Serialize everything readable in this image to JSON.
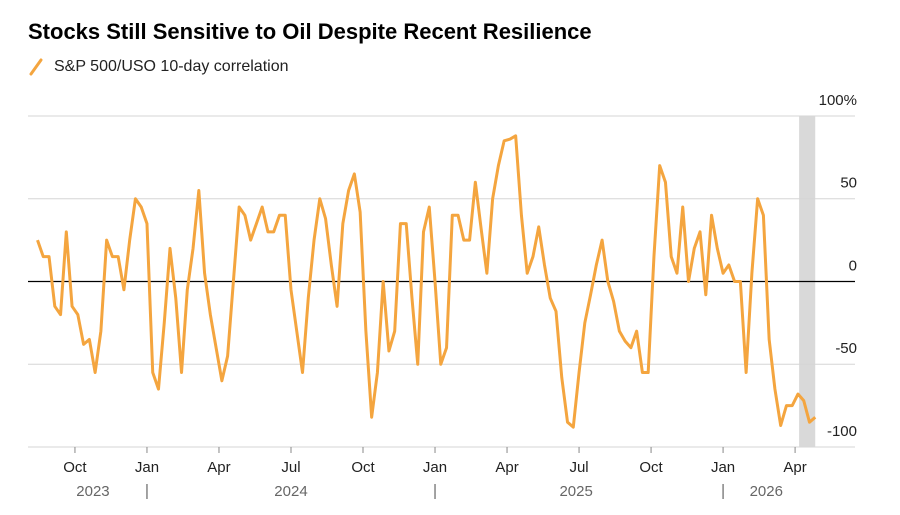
{
  "chart_data": {
    "type": "line",
    "title": "Stocks Still Sensitive to Oil Despite Recent Resilience",
    "series": [
      {
        "name": "S&P 500/USO 10-day correlation",
        "color": "#f4a53f",
        "values": [
          25,
          15,
          15,
          -15,
          -20,
          30,
          -15,
          -20,
          -38,
          -35,
          -55,
          -30,
          25,
          15,
          15,
          -5,
          25,
          50,
          45,
          35,
          -55,
          -65,
          -25,
          20,
          -10,
          -55,
          -5,
          20,
          55,
          5,
          -20,
          -40,
          -60,
          -45,
          0,
          45,
          40,
          25,
          35,
          45,
          30,
          30,
          40,
          40,
          -5,
          -30,
          -55,
          -10,
          25,
          50,
          38,
          10,
          -15,
          35,
          55,
          65,
          42,
          -30,
          -82,
          -55,
          0,
          -42,
          -30,
          35,
          35,
          -10,
          -50,
          30,
          45,
          0,
          -50,
          -40,
          40,
          40,
          25,
          25,
          60,
          32,
          5,
          50,
          70,
          85,
          86,
          88,
          40,
          5,
          15,
          33,
          10,
          -10,
          -18,
          -58,
          -85,
          -88,
          -55,
          -25,
          -8,
          10,
          25,
          0,
          -12,
          -30,
          -36,
          -40,
          -30,
          -55,
          -55,
          15,
          70,
          60,
          15,
          5,
          45,
          0,
          20,
          30,
          -8,
          40,
          20,
          5,
          10,
          0,
          0,
          -55,
          5,
          50,
          40,
          -35,
          -65,
          -87,
          -75,
          -75,
          -68,
          -72,
          -85,
          -82
        ]
      }
    ],
    "x": [
      2023.62,
      2023.64,
      2023.66,
      2023.68,
      2023.7,
      2023.72,
      2023.74,
      2023.76,
      2023.78,
      2023.8,
      2023.82,
      2023.84,
      2023.86,
      2023.88,
      2023.9,
      2023.92,
      2023.94,
      2023.96,
      2023.98,
      2024.0,
      2024.02,
      2024.04,
      2024.06,
      2024.08,
      2024.1,
      2024.12,
      2024.14,
      2024.16,
      2024.18,
      2024.2,
      2024.22,
      2024.24,
      2024.26,
      2024.28,
      2024.3,
      2024.32,
      2024.34,
      2024.36,
      2024.38,
      2024.4,
      2024.42,
      2024.44,
      2024.46,
      2024.48,
      2024.5,
      2024.52,
      2024.54,
      2024.56,
      2024.58,
      2024.6,
      2024.62,
      2024.64,
      2024.66,
      2024.68,
      2024.7,
      2024.72,
      2024.74,
      2024.76,
      2024.78,
      2024.8,
      2024.82,
      2024.84,
      2024.86,
      2024.88,
      2024.9,
      2024.92,
      2024.94,
      2024.96,
      2024.98,
      2025.0,
      2025.02,
      2025.04,
      2025.06,
      2025.08,
      2025.1,
      2025.12,
      2025.14,
      2025.16,
      2025.18,
      2025.2,
      2025.22,
      2025.24,
      2025.26,
      2025.28,
      2025.3,
      2025.32,
      2025.34,
      2025.36,
      2025.38,
      2025.4,
      2025.42,
      2025.44,
      2025.46,
      2025.48,
      2025.5,
      2025.52,
      2025.54,
      2025.56,
      2025.58,
      2025.6,
      2025.62,
      2025.64,
      2025.66,
      2025.68,
      2025.7,
      2025.72,
      2025.74,
      2025.76,
      2025.78,
      2025.8,
      2025.82,
      2025.84,
      2025.86,
      2025.88,
      2025.9,
      2025.92,
      2025.94,
      2025.96,
      2025.98,
      2026.0,
      2026.02,
      2026.04,
      2026.06,
      2026.08,
      2026.1,
      2026.12,
      2026.14,
      2026.16,
      2026.18,
      2026.2,
      2026.22,
      2026.24,
      2026.26,
      2026.28,
      2026.3,
      2026.32
    ],
    "xlim": [
      2023.587,
      2026.458
    ],
    "xticks": [
      {
        "value": 2023.75,
        "label": "Oct"
      },
      {
        "value": 2024.0,
        "label": "Jan"
      },
      {
        "value": 2024.25,
        "label": "Apr"
      },
      {
        "value": 2024.5,
        "label": "Jul"
      },
      {
        "value": 2024.75,
        "label": "Oct"
      },
      {
        "value": 2025.0,
        "label": "Jan"
      },
      {
        "value": 2025.25,
        "label": "Apr"
      },
      {
        "value": 2025.5,
        "label": "Jul"
      },
      {
        "value": 2025.75,
        "label": "Oct"
      },
      {
        "value": 2026.0,
        "label": "Jan"
      },
      {
        "value": 2026.25,
        "label": "Apr"
      }
    ],
    "year_labels": [
      {
        "value": 2023.8125,
        "label": "2023"
      },
      {
        "value": 2024.5,
        "label": "2024"
      },
      {
        "value": 2025.49,
        "label": "2025"
      },
      {
        "value": 2026.15,
        "label": "2026"
      }
    ],
    "year_separators": [
      2024,
      2025,
      2026
    ],
    "ylim": [
      -100,
      100
    ],
    "yticks": [
      -100,
      -50,
      0,
      50,
      {
        "value": 100,
        "label": "100%"
      }
    ],
    "shade": [
      2026.264,
      2026.32
    ],
    "shade_color": "#d9d9d9",
    "grid": true,
    "legend": "top-left"
  }
}
